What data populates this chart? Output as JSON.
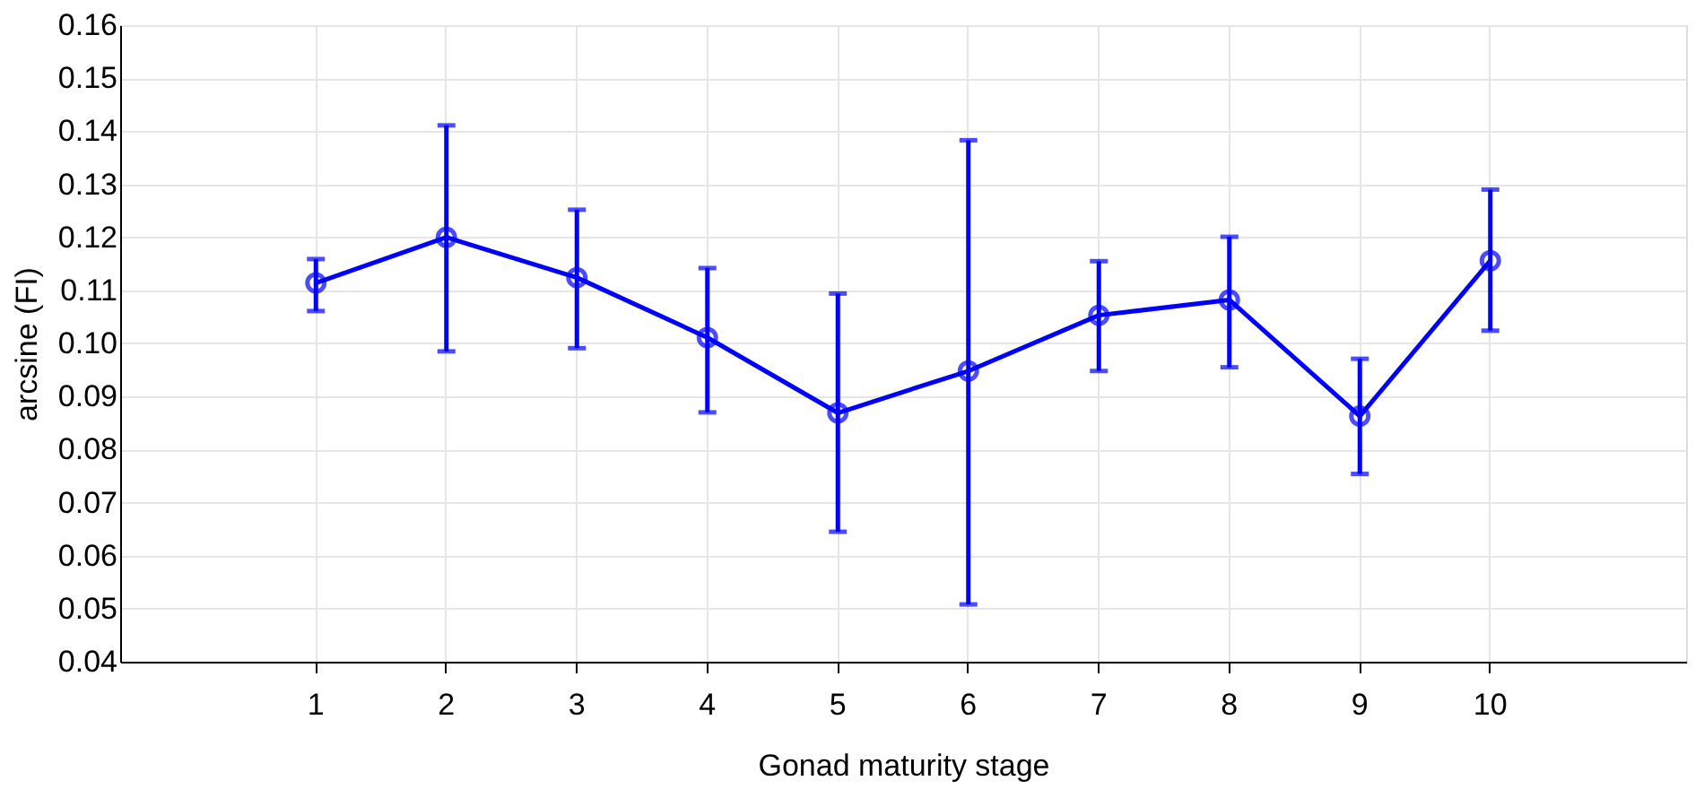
{
  "chart_data": {
    "type": "line",
    "xlabel": "Gonad maturity stage",
    "ylabel": "arcsine (FI)",
    "categories": [
      "1",
      "2",
      "3",
      "4",
      "5",
      "6",
      "7",
      "8",
      "9",
      "10"
    ],
    "series": [
      {
        "color": "#0000ff",
        "values": [
          0.1114,
          0.12,
          0.1124,
          0.1011,
          0.0869,
          0.0948,
          0.1053,
          0.1082,
          0.0863,
          0.1156
        ],
        "errors": [
          [
            0.1061,
            0.1159
          ],
          [
            0.0985,
            0.1411
          ],
          [
            0.0991,
            0.1252
          ],
          [
            0.087,
            0.1142
          ],
          [
            0.0645,
            0.1094
          ],
          [
            0.0508,
            0.1383
          ],
          [
            0.0948,
            0.1155
          ],
          [
            0.0955,
            0.1201
          ],
          [
            0.0754,
            0.0971
          ],
          [
            0.1024,
            0.129
          ]
        ]
      }
    ],
    "ylim": [
      0.04,
      0.16
    ],
    "yticks": [
      {
        "value": 0.04,
        "label": "0.04"
      },
      {
        "value": 0.05,
        "label": "0.05"
      },
      {
        "value": 0.06,
        "label": "0.06"
      },
      {
        "value": 0.07,
        "label": "0.07"
      },
      {
        "value": 0.08,
        "label": "0.08"
      },
      {
        "value": 0.09,
        "label": "0.09"
      },
      {
        "value": 0.1,
        "label": "0.10"
      },
      {
        "value": 0.11,
        "label": "0.11"
      },
      {
        "value": 0.12,
        "label": "0.12"
      },
      {
        "value": 0.13,
        "label": "0.13"
      },
      {
        "value": 0.14,
        "label": "0.14"
      },
      {
        "value": 0.15,
        "label": "0.15"
      },
      {
        "value": 0.16,
        "label": "0.16"
      }
    ],
    "grid": true,
    "marker": "circle",
    "line_style": "solid"
  }
}
